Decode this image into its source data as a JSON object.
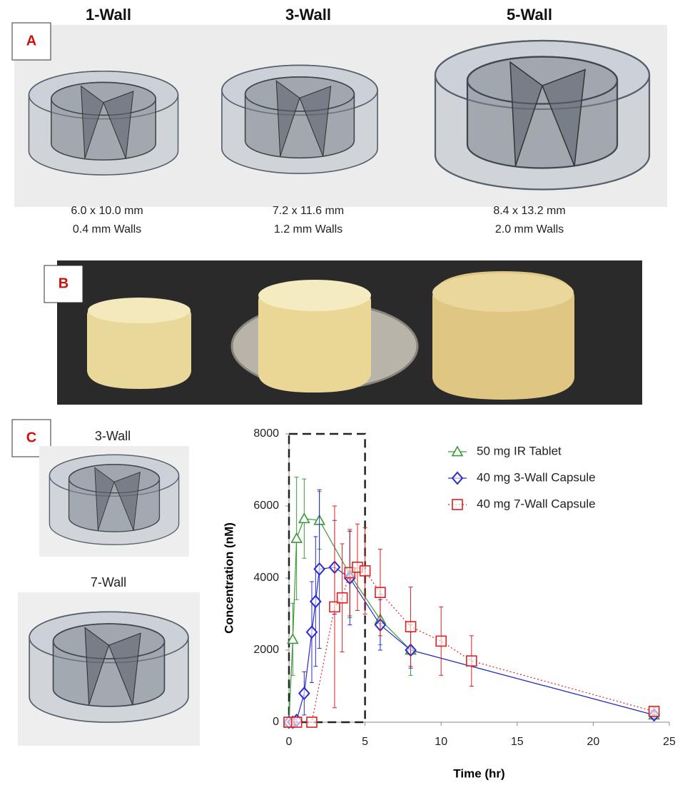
{
  "panels": {
    "A": {
      "label": "A",
      "items": [
        {
          "title": "1-Wall",
          "size": "6.0 x 10.0 mm",
          "walls": "0.4 mm Walls"
        },
        {
          "title": "3-Wall",
          "size": "7.2 x 11.6 mm",
          "walls": "1.2 mm Walls"
        },
        {
          "title": "5-Wall",
          "size": "8.4 x 13.2 mm",
          "walls": "2.0 mm Walls"
        }
      ]
    },
    "B": {
      "label": "B"
    },
    "C": {
      "label": "C",
      "items": [
        "3-Wall",
        "7-Wall"
      ]
    }
  },
  "chart_data": {
    "type": "line",
    "xlabel": "Time (hr)",
    "ylabel": "Concentration (nM)",
    "xlim": [
      0,
      25
    ],
    "ylim": [
      0,
      8000
    ],
    "xticks": [
      0,
      5,
      10,
      15,
      20,
      25
    ],
    "yticks": [
      0,
      2000,
      4000,
      6000,
      8000
    ],
    "highlight_x": [
      0,
      5
    ],
    "legend": "upper right",
    "series": [
      {
        "name": "50 mg IR Tablet",
        "color": "#3a9a3a",
        "marker": "triangle",
        "dash": "solid",
        "x": [
          0,
          0.25,
          0.5,
          1,
          2,
          4,
          6,
          8,
          24
        ],
        "values": [
          0,
          2300,
          5100,
          5650,
          5600,
          4100,
          2850,
          2000,
          200
        ],
        "errors": [
          0,
          1000,
          1700,
          1100,
          800,
          1200,
          700,
          700,
          100
        ]
      },
      {
        "name": "40 mg 3-Wall Capsule",
        "color": "#2a2ad0",
        "marker": "diamond",
        "dash": "solid",
        "x": [
          0,
          0.25,
          0.5,
          1,
          1.5,
          1.75,
          2,
          3,
          4,
          6,
          8,
          24
        ],
        "values": [
          0,
          0,
          50,
          800,
          2500,
          3350,
          4250,
          4300,
          4000,
          2700,
          2000,
          200
        ],
        "errors": [
          0,
          0,
          50,
          600,
          1400,
          1800,
          2200,
          1300,
          1300,
          700,
          500,
          100
        ]
      },
      {
        "name": "40 mg 7-Wall Capsule",
        "color": "#e02020",
        "marker": "square",
        "dash": "dotted",
        "x": [
          0,
          0.5,
          1.5,
          3,
          3.5,
          4,
          4.5,
          5,
          6,
          8,
          10,
          12,
          24
        ],
        "values": [
          0,
          0,
          0,
          3200,
          3450,
          4150,
          4300,
          4200,
          3600,
          2650,
          2250,
          1700,
          300
        ],
        "errors": [
          0,
          0,
          0,
          2800,
          1500,
          1200,
          1200,
          1200,
          1200,
          1100,
          950,
          700,
          100
        ]
      }
    ]
  }
}
